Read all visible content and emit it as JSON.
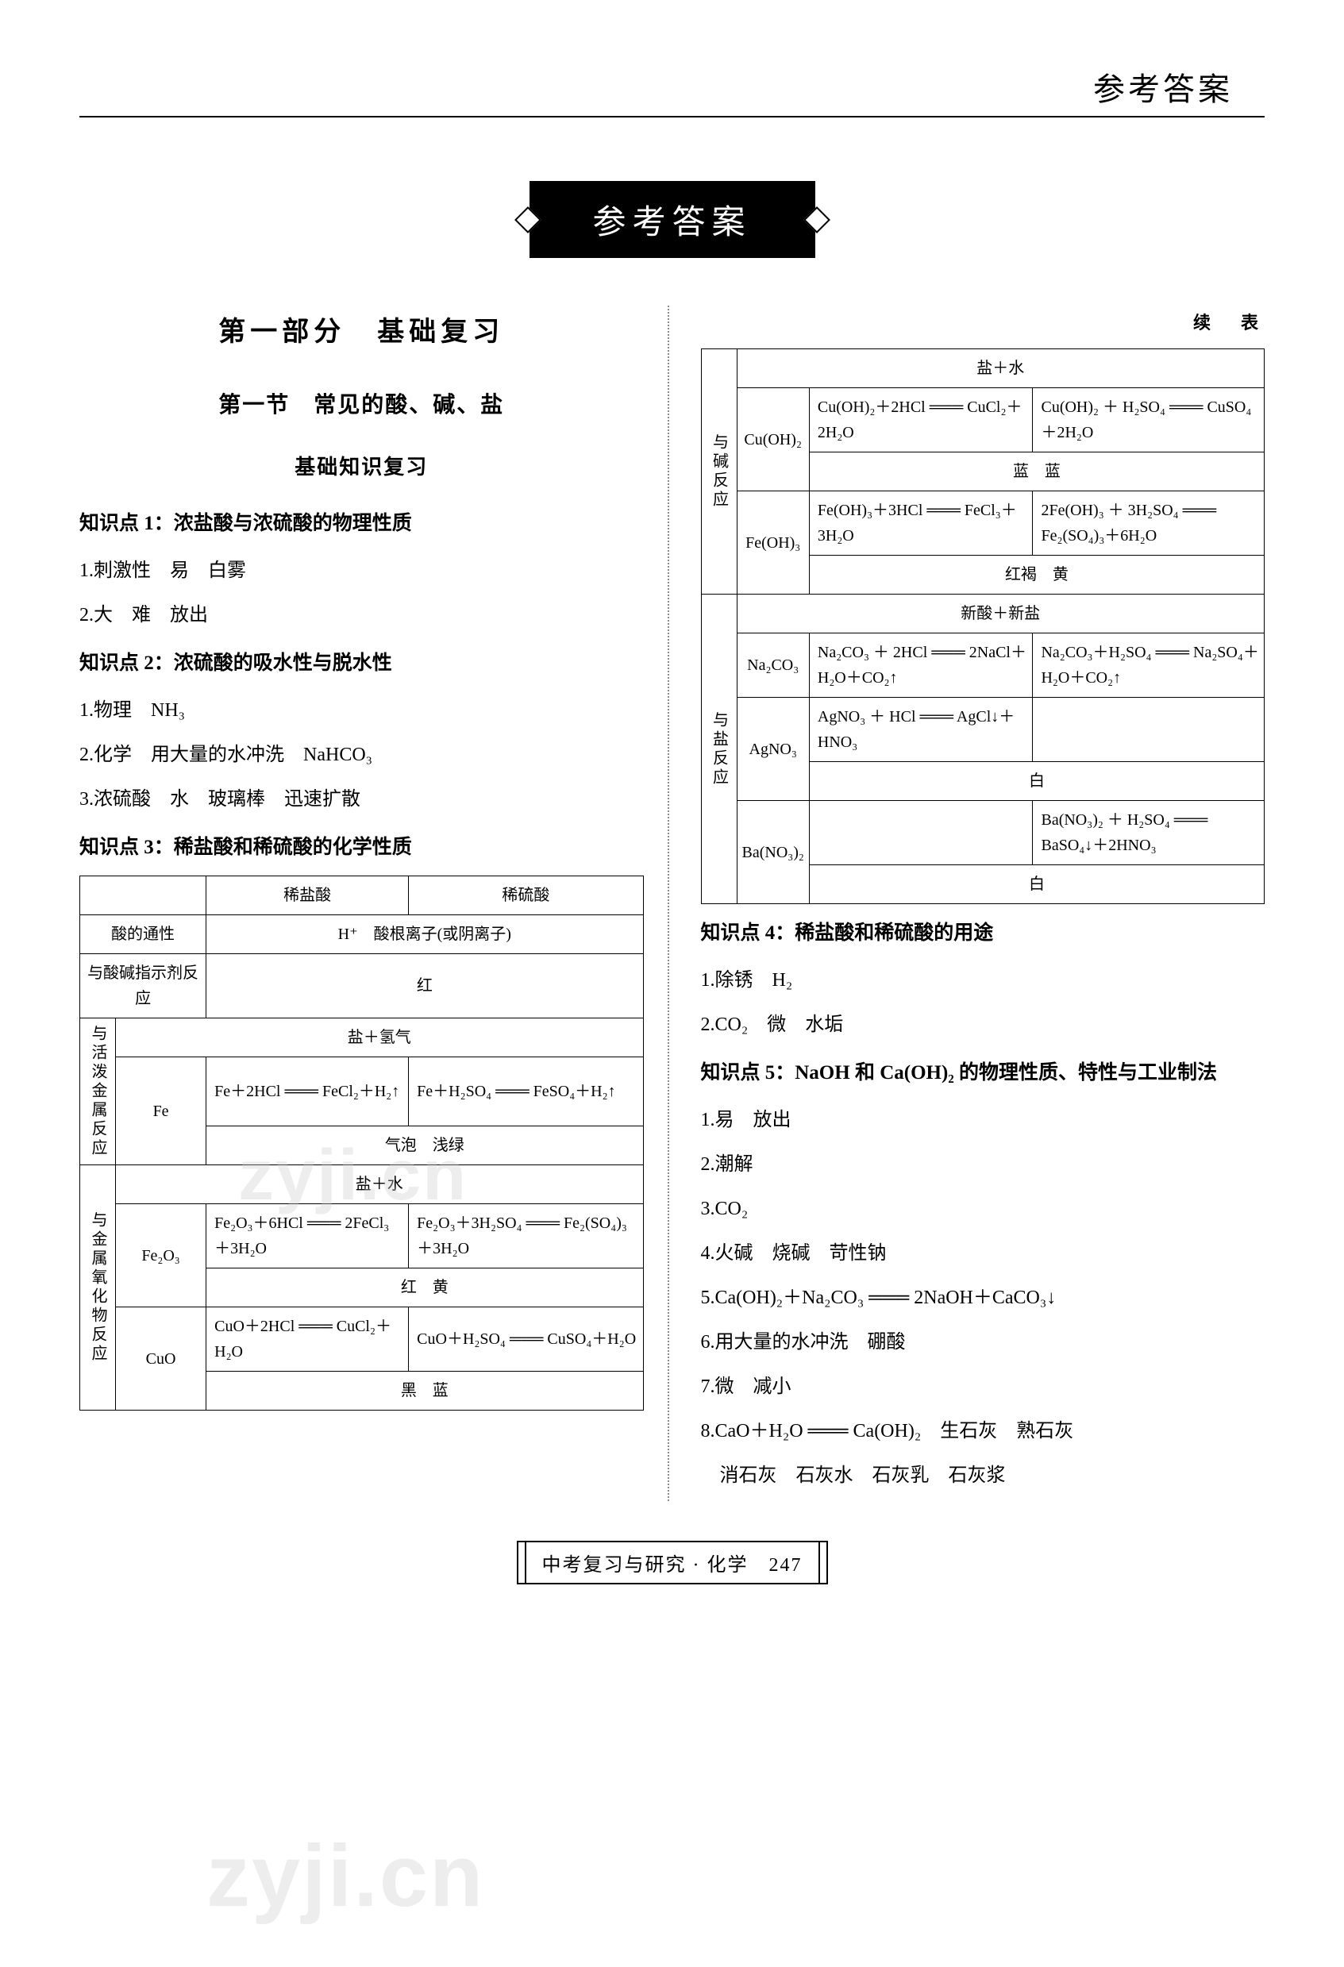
{
  "header": {
    "title": "参考答案"
  },
  "titleBox": "参考答案",
  "left": {
    "partTitle": "第一部分　基础复习",
    "sectionTitle": "第一节　常见的酸、碱、盐",
    "subsectionTitle": "基础知识复习",
    "kp1": "知识点 1：浓盐酸与浓硫酸的物理性质",
    "kp1_1": "1.刺激性　易　白雾",
    "kp1_2": "2.大　难　放出",
    "kp2": "知识点 2：浓硫酸的吸水性与脱水性",
    "kp2_1": "1.物理　NH₃",
    "kp2_2": "2.化学　用大量的水冲洗　NaHCO₃",
    "kp2_3": "3.浓硫酸　水　玻璃棒　迅速扩散",
    "kp3": "知识点 3：稀盐酸和稀硫酸的化学性质",
    "table1": {
      "h1": "稀盐酸",
      "h2": "稀硫酸",
      "r1c1": "酸的通性",
      "r1c2": "H⁺　酸根离子(或阴离子)",
      "r2c1": "与酸碱指示剂反应",
      "r2c2": "红",
      "cat1": "与活泼金属反应",
      "r3top": "盐＋氢气",
      "fe": "Fe",
      "r3a": "Fe＋2HCl ═══ FeCl₂＋H₂↑",
      "r3b": "Fe＋H₂SO₄ ═══ FeSO₄＋H₂↑",
      "r3bot": "气泡　浅绿",
      "cat2": "与金属氧化物反应",
      "r4top": "盐＋水",
      "fe2o3": "Fe₂O₃",
      "r4a": "Fe₂O₃＋6HCl ═══ 2FeCl₃＋3H₂O",
      "r4b": "Fe₂O₃＋3H₂SO₄ ═══ Fe₂(SO₄)₃＋3H₂O",
      "r4bot": "红　黄",
      "cuo": "CuO",
      "r5a": "CuO＋2HCl ═══ CuCl₂＋H₂O",
      "r5b": "CuO＋H₂SO₄ ═══ CuSO₄＋H₂O",
      "r5bot": "黑　蓝"
    }
  },
  "right": {
    "continue": "续　表",
    "table2": {
      "cat1": "与碱反应",
      "r1top": "盐＋水",
      "cuoh2": "Cu(OH)₂",
      "r1a": "Cu(OH)₂＋2HCl ═══ CuCl₂＋2H₂O",
      "r1b": "Cu(OH)₂ ＋ H₂SO₄ ═══ CuSO₄＋2H₂O",
      "r1bot": "蓝　蓝",
      "feoh3": "Fe(OH)₃",
      "r2a": "Fe(OH)₃＋3HCl ═══ FeCl₃＋3H₂O",
      "r2b": "2Fe(OH)₃ ＋ 3H₂SO₄ ═══ Fe₂(SO₄)₃＋6H₂O",
      "r2bot": "红褐　黄",
      "cat2": "与盐反应",
      "r3top": "新酸＋新盐",
      "na2co3": "Na₂CO₃",
      "r3a": "Na₂CO₃ ＋ 2HCl ═══ 2NaCl＋H₂O＋CO₂↑",
      "r3b": "Na₂CO₃＋H₂SO₄ ═══ Na₂SO₄＋H₂O＋CO₂↑",
      "agno3": "AgNO₃",
      "r4a": "AgNO₃ ＋ HCl ═══ AgCl↓＋HNO₃",
      "r4bot": "白",
      "bano32": "Ba(NO₃)₂",
      "r5b": "Ba(NO₃)₂ ＋ H₂SO₄ ═══ BaSO₄↓＋2HNO₃",
      "r5bot": "白"
    },
    "kp4": "知识点 4：稀盐酸和稀硫酸的用途",
    "kp4_1": "1.除锈　H₂",
    "kp4_2": "2.CO₂　微　水垢",
    "kp5": "知识点 5：NaOH 和 Ca(OH)₂ 的物理性质、特性与工业制法",
    "kp5_1": "1.易　放出",
    "kp5_2": "2.潮解",
    "kp5_3": "3.CO₂",
    "kp5_4": "4.火碱　烧碱　苛性钠",
    "kp5_5": "5.Ca(OH)₂＋Na₂CO₃ ═══ 2NaOH＋CaCO₃↓",
    "kp5_6": "6.用大量的水冲洗　硼酸",
    "kp5_7": "7.微　减小",
    "kp5_8a": "8.CaO＋H₂O ═══ Ca(OH)₂　生石灰　熟石灰",
    "kp5_8b": "　消石灰　石灰水　石灰乳　石灰浆"
  },
  "footer": "中考复习与研究 · 化学　247",
  "watermark": "zyji.cn"
}
